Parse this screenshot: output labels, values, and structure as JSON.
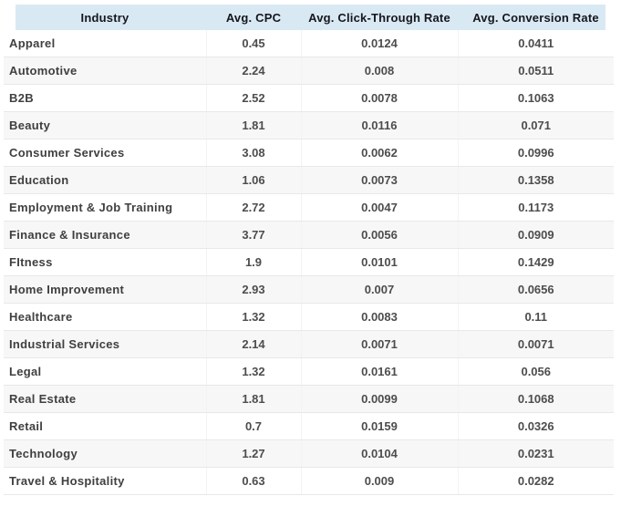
{
  "chart_data": {
    "type": "table",
    "columns": [
      "Industry",
      "Avg. CPC",
      "Avg. Click-Through Rate",
      "Avg. Conversion Rate"
    ],
    "rows": [
      [
        "Apparel",
        "0.45",
        "0.0124",
        "0.0411"
      ],
      [
        "Automotive",
        "2.24",
        "0.008",
        "0.0511"
      ],
      [
        "B2B",
        "2.52",
        "0.0078",
        "0.1063"
      ],
      [
        "Beauty",
        "1.81",
        "0.0116",
        "0.071"
      ],
      [
        "Consumer Services",
        "3.08",
        "0.0062",
        "0.0996"
      ],
      [
        "Education",
        "1.06",
        "0.0073",
        "0.1358"
      ],
      [
        "Employment & Job Training",
        "2.72",
        "0.0047",
        "0.1173"
      ],
      [
        "Finance & Insurance",
        "3.77",
        "0.0056",
        "0.0909"
      ],
      [
        "FItness",
        "1.9",
        "0.0101",
        "0.1429"
      ],
      [
        "Home Improvement",
        "2.93",
        "0.007",
        "0.0656"
      ],
      [
        "Healthcare",
        "1.32",
        "0.0083",
        "0.11"
      ],
      [
        "Industrial Services",
        "2.14",
        "0.0071",
        "0.0071"
      ],
      [
        "Legal",
        "1.32",
        "0.0161",
        "0.056"
      ],
      [
        "Real Estate",
        "1.81",
        "0.0099",
        "0.1068"
      ],
      [
        "Retail",
        "0.7",
        "0.0159",
        "0.0326"
      ],
      [
        "Technology",
        "1.27",
        "0.0104",
        "0.0231"
      ],
      [
        "Travel & Hospitality",
        "0.63",
        "0.009",
        "0.0282"
      ]
    ],
    "legend": "none",
    "grid": "horizontal-row-separators"
  },
  "colors": {
    "page-bg": "#ffffff",
    "header-bg": "#d9e9f4",
    "header-text": "#15161d",
    "industry-text": "#3f3f3f",
    "value-text": "#4d4d4d",
    "row-alt-bg": "#f7f7f8",
    "row-border": "#e8e8e8",
    "column-border": "#f3f3f3"
  }
}
